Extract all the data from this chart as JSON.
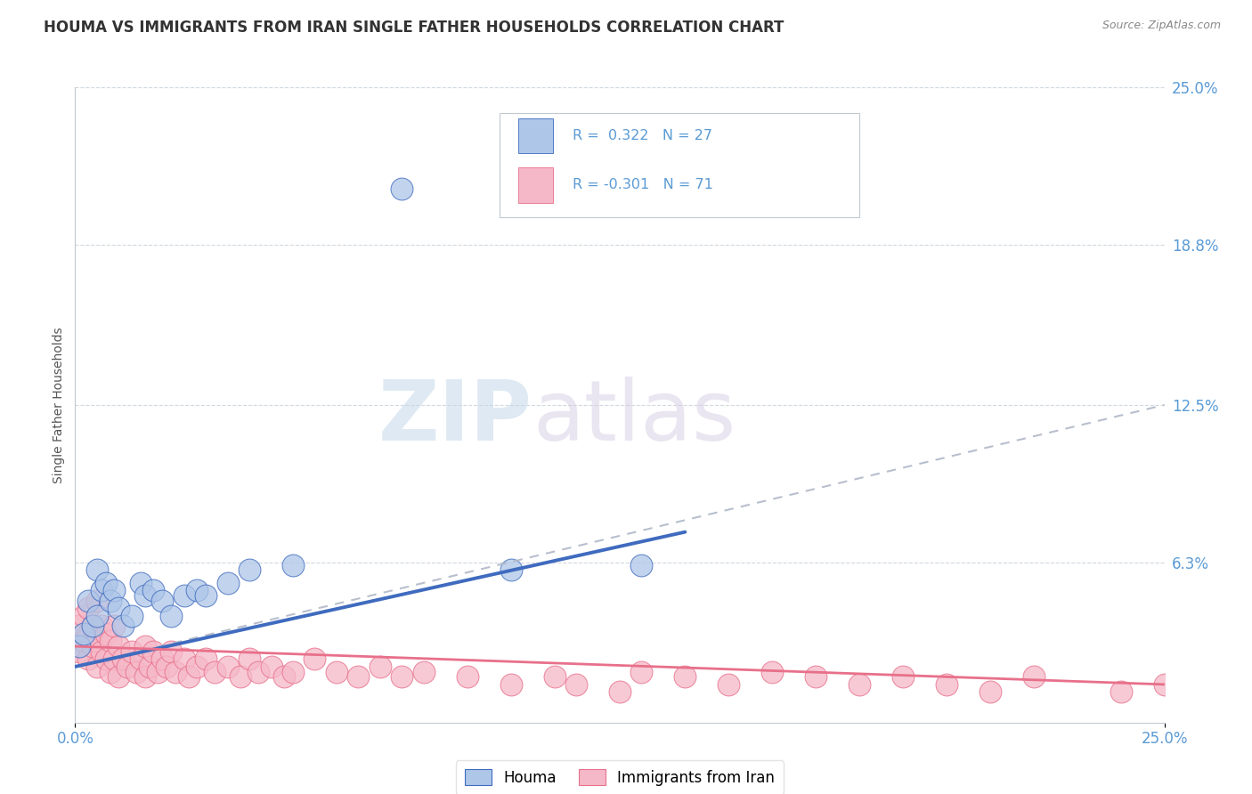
{
  "title": "HOUMA VS IMMIGRANTS FROM IRAN SINGLE FATHER HOUSEHOLDS CORRELATION CHART",
  "source": "Source: ZipAtlas.com",
  "ylabel": "Single Father Households",
  "xlim": [
    0.0,
    0.25
  ],
  "ylim": [
    0.0,
    0.25
  ],
  "ytick_vals": [
    0.0,
    0.063,
    0.125,
    0.188,
    0.25
  ],
  "ytick_labels": [
    "",
    "6.3%",
    "12.5%",
    "18.8%",
    "25.0%"
  ],
  "xtick_vals": [
    0.0,
    0.25
  ],
  "xtick_labels": [
    "0.0%",
    "25.0%"
  ],
  "houma_color": "#aec6e8",
  "iran_color": "#f5b8c8",
  "trend_blue": "#3f6bbf",
  "trend_pink": "#e8708a",
  "trend_gray": "#b0b8c8",
  "tick_color": "#5b9bd5",
  "background_color": "#ffffff",
  "watermark_zip": "ZIP",
  "watermark_atlas": "atlas",
  "grid_color": "#d0d8e0",
  "border_color": "#c0c8d0",
  "blue_line_x": [
    0.0,
    0.14
  ],
  "blue_line_y": [
    0.022,
    0.075
  ],
  "pink_line_x": [
    0.0,
    0.25
  ],
  "pink_line_y": [
    0.03,
    0.015
  ],
  "gray_line_x": [
    0.0,
    0.25
  ],
  "gray_line_y": [
    0.022,
    0.125
  ],
  "houma_scatter_x": [
    0.001,
    0.002,
    0.003,
    0.004,
    0.005,
    0.005,
    0.006,
    0.007,
    0.008,
    0.009,
    0.01,
    0.011,
    0.013,
    0.015,
    0.016,
    0.018,
    0.02,
    0.022,
    0.025,
    0.028,
    0.03,
    0.035,
    0.04,
    0.05,
    0.075,
    0.1,
    0.13
  ],
  "houma_scatter_y": [
    0.03,
    0.035,
    0.048,
    0.038,
    0.06,
    0.042,
    0.052,
    0.055,
    0.048,
    0.052,
    0.045,
    0.038,
    0.042,
    0.055,
    0.05,
    0.052,
    0.048,
    0.042,
    0.05,
    0.052,
    0.05,
    0.055,
    0.06,
    0.062,
    0.21,
    0.06,
    0.062
  ],
  "iran_scatter_x": [
    0.001,
    0.001,
    0.002,
    0.002,
    0.003,
    0.003,
    0.003,
    0.004,
    0.004,
    0.005,
    0.005,
    0.005,
    0.006,
    0.006,
    0.007,
    0.007,
    0.008,
    0.008,
    0.009,
    0.009,
    0.01,
    0.01,
    0.011,
    0.012,
    0.013,
    0.014,
    0.015,
    0.016,
    0.016,
    0.017,
    0.018,
    0.019,
    0.02,
    0.021,
    0.022,
    0.023,
    0.025,
    0.026,
    0.028,
    0.03,
    0.032,
    0.035,
    0.038,
    0.04,
    0.042,
    0.045,
    0.048,
    0.05,
    0.055,
    0.06,
    0.065,
    0.07,
    0.075,
    0.08,
    0.09,
    0.1,
    0.11,
    0.115,
    0.125,
    0.13,
    0.14,
    0.15,
    0.16,
    0.17,
    0.18,
    0.19,
    0.2,
    0.21,
    0.22,
    0.24,
    0.25
  ],
  "iran_scatter_y": [
    0.028,
    0.038,
    0.032,
    0.042,
    0.025,
    0.035,
    0.045,
    0.03,
    0.038,
    0.022,
    0.032,
    0.048,
    0.028,
    0.038,
    0.025,
    0.035,
    0.02,
    0.032,
    0.025,
    0.038,
    0.018,
    0.03,
    0.025,
    0.022,
    0.028,
    0.02,
    0.025,
    0.018,
    0.03,
    0.022,
    0.028,
    0.02,
    0.025,
    0.022,
    0.028,
    0.02,
    0.025,
    0.018,
    0.022,
    0.025,
    0.02,
    0.022,
    0.018,
    0.025,
    0.02,
    0.022,
    0.018,
    0.02,
    0.025,
    0.02,
    0.018,
    0.022,
    0.018,
    0.02,
    0.018,
    0.015,
    0.018,
    0.015,
    0.012,
    0.02,
    0.018,
    0.015,
    0.02,
    0.018,
    0.015,
    0.018,
    0.015,
    0.012,
    0.018,
    0.012,
    0.015
  ]
}
